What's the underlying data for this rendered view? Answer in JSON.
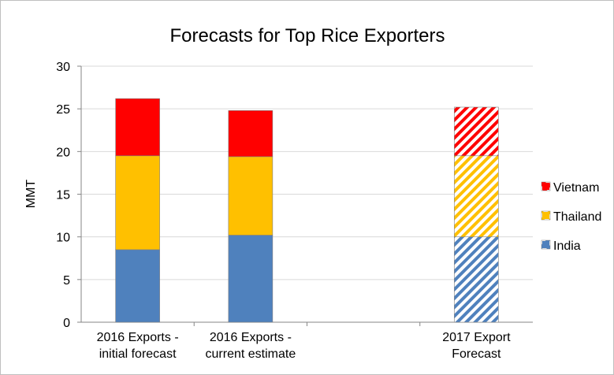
{
  "chart_data": {
    "type": "bar",
    "stacked": true,
    "title": "Forecasts for Top Rice Exporters",
    "xlabel": "",
    "ylabel": "MMT",
    "ylim": [
      0,
      30
    ],
    "yticks": [
      "0",
      "5",
      "10",
      "15",
      "20",
      "25",
      "30"
    ],
    "grid": true,
    "legend_position": "right",
    "categories": [
      [
        "2016 Exports -",
        "initial forecast"
      ],
      [
        "2016 Exports -",
        "current estimate"
      ],
      [
        "",
        ""
      ],
      [
        "2017 Export",
        "Forecast"
      ]
    ],
    "hatched_categories": [
      false,
      false,
      false,
      true
    ],
    "series": [
      {
        "name": "India",
        "color": "#4f81bd",
        "values": [
          8.5,
          10.2,
          null,
          10.0
        ]
      },
      {
        "name": "Thailand",
        "color": "#ffc000",
        "values": [
          11.0,
          9.2,
          null,
          9.5
        ]
      },
      {
        "name": "Vietnam",
        "color": "#ff0000",
        "values": [
          6.7,
          5.4,
          null,
          5.7
        ]
      }
    ],
    "legend_order": [
      "Vietnam",
      "Thailand",
      "India"
    ]
  }
}
